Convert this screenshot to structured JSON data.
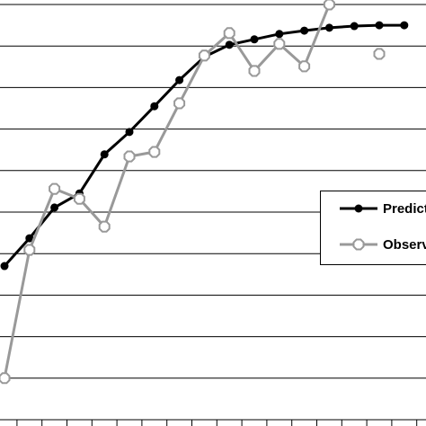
{
  "chart_data": {
    "type": "line",
    "categories": [
      null,
      null,
      null,
      null,
      null,
      null,
      null,
      null,
      null,
      null,
      null,
      null,
      null,
      null,
      null,
      null,
      null
    ],
    "series": [
      {
        "name": "Predicted",
        "color": "#000000",
        "marker": "circle",
        "values": [
          3.7,
          4.37,
          5.11,
          5.45,
          6.39,
          6.93,
          7.55,
          8.18,
          8.74,
          9.03,
          9.16,
          9.29,
          9.37,
          9.44,
          9.48,
          9.5,
          9.5
        ]
      },
      {
        "name": "Observed",
        "color": "#999999",
        "marker": "octagon",
        "values": [
          1.0,
          4.09,
          5.56,
          5.32,
          4.65,
          6.34,
          6.45,
          7.62,
          8.77,
          9.31,
          8.4,
          9.05,
          8.51,
          10.0,
          null,
          8.81,
          null
        ]
      }
    ],
    "ylim": [
      0,
      10.11
    ],
    "yticks": [
      0,
      1,
      2,
      3,
      4,
      5,
      6,
      7,
      8,
      9,
      10
    ],
    "grid": true,
    "legend": "right"
  }
}
